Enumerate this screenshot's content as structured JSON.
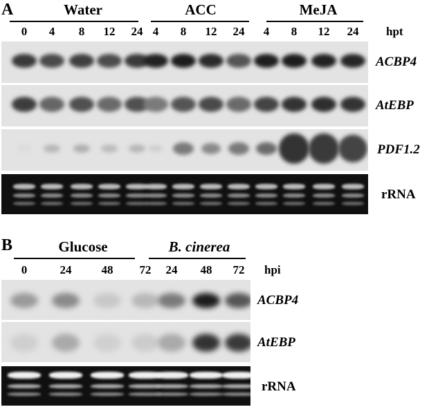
{
  "panelA": {
    "letter": "A",
    "groups": [
      "Water",
      "ACC",
      "MeJA"
    ],
    "timepoints": [
      "0",
      "4",
      "8",
      "12",
      "24",
      "4",
      "8",
      "12",
      "24",
      "4",
      "8",
      "12",
      "24"
    ],
    "unit": "hpt",
    "rows": [
      "ACBP4",
      "AtEBP",
      "PDF1.2",
      "rRNA"
    ]
  },
  "panelB": {
    "letter": "B",
    "groups": [
      "Glucose",
      "B. cinerea"
    ],
    "timepoints": [
      "0",
      "24",
      "48",
      "72",
      "24",
      "48",
      "72"
    ],
    "unit": "hpi",
    "rows": [
      "ACBP4",
      "AtEBP",
      "rRNA"
    ]
  }
}
